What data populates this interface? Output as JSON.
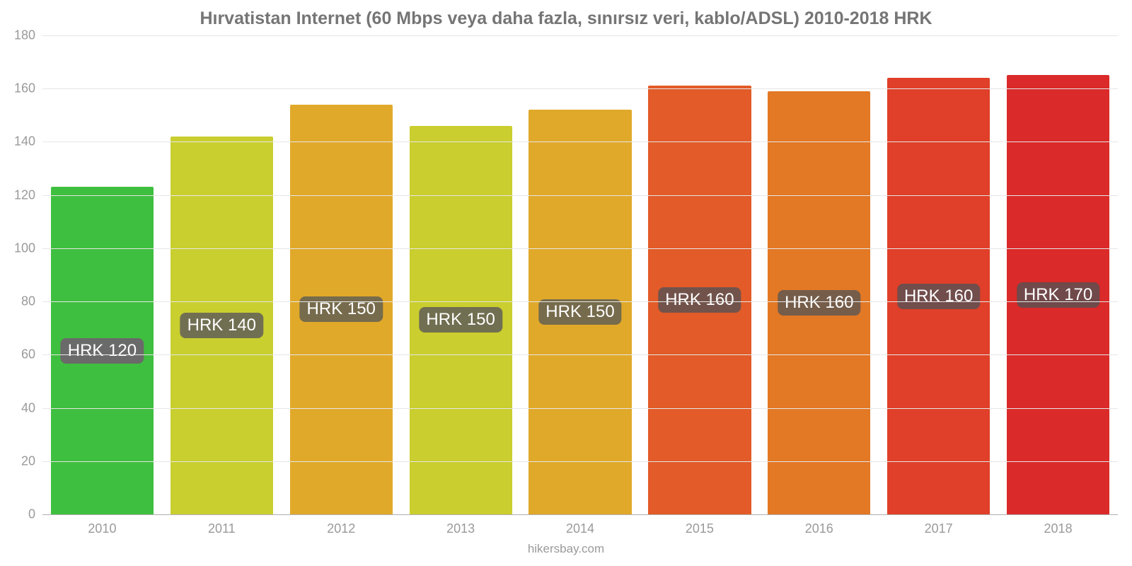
{
  "chart": {
    "type": "bar",
    "title": "Hırvatistan Internet (60 Mbps veya daha fazla, sınırsız veri, kablo/ADSL) 2010-2018 HRK",
    "title_color": "#757575",
    "title_fontsize": 25,
    "title_fontweight": 700,
    "background_color": "#ffffff",
    "grid_color": "#e6e6e6",
    "axis_line_color": "#b0b0b0",
    "axis_text_color": "#9a9a9a",
    "axis_fontsize": 18,
    "ylim": [
      0,
      180
    ],
    "ytick_step": 20,
    "yticks": [
      0,
      20,
      40,
      60,
      80,
      100,
      120,
      140,
      160,
      180
    ],
    "categories": [
      "2010",
      "2011",
      "2012",
      "2013",
      "2014",
      "2015",
      "2016",
      "2017",
      "2018"
    ],
    "values": [
      123,
      142,
      154,
      146,
      152,
      161,
      159,
      164,
      165
    ],
    "value_labels": [
      "HRK 120",
      "HRK 140",
      "HRK 150",
      "HRK 150",
      "HRK 150",
      "HRK 160",
      "HRK 160",
      "HRK 160",
      "HRK 170"
    ],
    "bar_colors": [
      "#3fbf3f",
      "#c9cf2f",
      "#e1a92a",
      "#cace2e",
      "#e1a92a",
      "#e25b28",
      "#e37825",
      "#e03f29",
      "#da2a29"
    ],
    "badge_bg_colors": [
      "#6a6a6a",
      "#716f52",
      "#766b4c",
      "#716f51",
      "#766b4c",
      "#72534b",
      "#755d4a",
      "#714d4c",
      "#70494b"
    ],
    "badge_text_color": "#ffffff",
    "badge_fontsize": 24,
    "bar_width_pct": 86,
    "footer": "hikersbay.com",
    "footer_color": "#9a9a9a",
    "footer_fontsize": 17
  }
}
